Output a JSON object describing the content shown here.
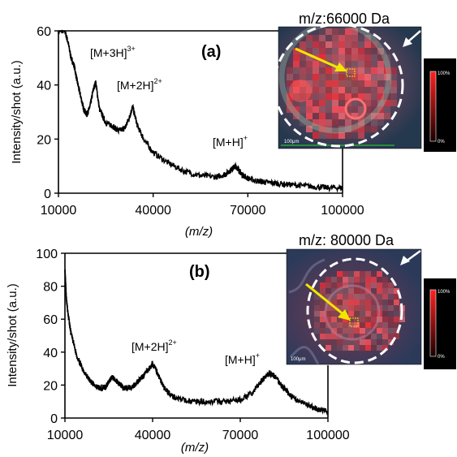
{
  "colors": {
    "trace": "#000000",
    "ring": "#ffffff",
    "arrow_yellow": "#f2e600",
    "heat_high": "#ff2020",
    "heat_low": "#1a0000"
  },
  "chart_data": [
    {
      "type": "line",
      "panel_label": "(a)",
      "xlabel": "(m/z)",
      "ylabel": "Intensity/shot  (a.u.)",
      "xlim": [
        10000,
        100000
      ],
      "ylim": [
        0,
        60
      ],
      "xticks": [
        "10000",
        "40000",
        "70000",
        "100000"
      ],
      "yticks": [
        "0",
        "20",
        "40",
        "60"
      ],
      "x_tick_values": [
        10000,
        40000,
        70000,
        100000
      ],
      "y_tick_values": [
        0,
        20,
        40,
        60
      ],
      "series": [
        {
          "x": [
            10000,
            12000,
            13000,
            14000,
            15000,
            16000,
            17000,
            18000,
            19000,
            20000,
            21000,
            21800,
            23000,
            25000,
            27000,
            29000,
            31000,
            32500,
            33500,
            35000,
            37000,
            40000,
            45000,
            50000,
            55000,
            60000,
            63000,
            65000,
            66000,
            67000,
            68000,
            70000,
            73000,
            76000,
            80000,
            85000,
            90000,
            95000,
            100000
          ],
          "y": [
            60,
            60,
            56,
            50,
            47,
            41,
            36,
            31,
            29,
            32,
            38,
            41,
            31,
            26,
            25,
            23,
            24,
            28,
            32,
            25,
            20,
            15,
            11,
            8,
            6.5,
            6,
            7,
            9,
            10,
            9,
            7,
            5.5,
            4.5,
            4,
            3.5,
            3,
            2.5,
            2,
            2
          ]
        }
      ],
      "annotations": [
        {
          "label": "[M+3H]",
          "sup": "3+"
        },
        {
          "label": "[M+2H]",
          "sup": "2+"
        },
        {
          "label": "[M+H]",
          "sup": "+"
        }
      ],
      "image_title": "m/z:66000 Da",
      "scale_labels": [
        "100%",
        "0%"
      ]
    },
    {
      "type": "line",
      "panel_label": "(b)",
      "xlabel": "(m/z)",
      "ylabel": "Intensity/shot  (a.u.)",
      "xlim": [
        10000,
        100000
      ],
      "ylim": [
        0,
        100
      ],
      "xticks": [
        "10000",
        "40000",
        "70000",
        "100000"
      ],
      "yticks": [
        "0",
        "20",
        "40",
        "60",
        "80",
        "100"
      ],
      "x_tick_values": [
        10000,
        40000,
        70000,
        100000
      ],
      "y_tick_values": [
        0,
        20,
        40,
        60,
        80,
        100
      ],
      "series": [
        {
          "x": [
            10000,
            10500,
            11000,
            12000,
            14000,
            16000,
            18000,
            20000,
            22000,
            24000,
            26000,
            28000,
            30000,
            33000,
            36000,
            38000,
            40000,
            42000,
            44000,
            47000,
            50000,
            55000,
            60000,
            65000,
            70000,
            74000,
            77000,
            79000,
            80000,
            82000,
            84000,
            87000,
            90000,
            94000,
            97000,
            100000
          ],
          "y": [
            90,
            72,
            64,
            52,
            38,
            30,
            24,
            20,
            18,
            19,
            25,
            22,
            18,
            19,
            24,
            28,
            33,
            26,
            18,
            13,
            11,
            10,
            10,
            10,
            11,
            15,
            22,
            26,
            27,
            25,
            20,
            14,
            10,
            7,
            5,
            4
          ]
        }
      ],
      "annotations": [
        {
          "label": "[M+2H]",
          "sup": "2+"
        },
        {
          "label": "[M+H]",
          "sup": "+"
        }
      ],
      "image_title": "m/z: 80000 Da",
      "scale_labels": [
        "100%",
        "0%"
      ]
    }
  ]
}
